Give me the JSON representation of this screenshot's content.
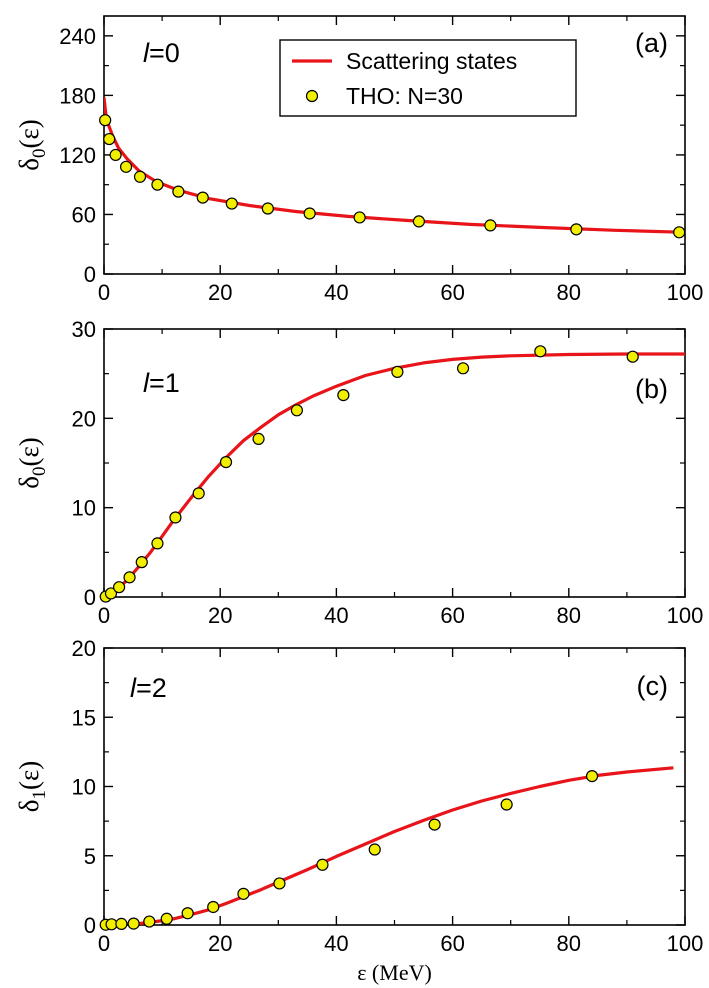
{
  "chart_data": [
    {
      "type": "scatter",
      "panel": "(a)",
      "l_label": {
        "symbol": "l",
        "text": "=0"
      },
      "ylabel": {
        "main": "δ",
        "sub": "0",
        "tail": "(ε)"
      },
      "xlim": [
        0,
        100
      ],
      "ylim": [
        0,
        260
      ],
      "xticks": [
        0,
        20,
        40,
        60,
        80,
        100
      ],
      "yticks": [
        0,
        60,
        120,
        180,
        240
      ],
      "legend": {
        "line": "Scattering states",
        "points": "THO: N=30",
        "placement": "top-center"
      },
      "series": [
        {
          "name": "Scattering states",
          "kind": "line",
          "color": "#e8141a",
          "x": [
            0,
            0.3,
            0.8,
            1.5,
            2.5,
            4,
            6,
            9,
            13,
            18,
            25,
            33,
            42,
            52,
            63,
            75,
            88,
            100
          ],
          "y": [
            178,
            162,
            150,
            139,
            127,
            116,
            104,
            93,
            84,
            76,
            69,
            63,
            58,
            54,
            50,
            47,
            44,
            42
          ]
        },
        {
          "name": "THO: N=30",
          "kind": "points",
          "color": "#f2ee00",
          "x": [
            0.2,
            0.9,
            2.0,
            3.8,
            6.2,
            9.2,
            12.8,
            17.0,
            22.0,
            28.2,
            35.4,
            44.0,
            54.2,
            66.5,
            81.3,
            99.0
          ],
          "y": [
            155,
            136,
            120,
            108,
            98,
            90,
            83,
            77,
            71,
            66,
            61,
            57,
            53,
            49,
            45,
            42
          ]
        }
      ]
    },
    {
      "type": "scatter",
      "panel": "(b)",
      "l_label": {
        "symbol": "l",
        "text": "=1"
      },
      "ylabel": {
        "main": "δ",
        "sub": "0",
        "tail": "(ε)"
      },
      "xlim": [
        0,
        100
      ],
      "ylim": [
        0,
        30
      ],
      "xticks": [
        0,
        20,
        40,
        60,
        80,
        100
      ],
      "yticks": [
        0,
        10,
        20,
        30
      ],
      "series": [
        {
          "name": "Scattering states",
          "kind": "line",
          "color": "#e8141a",
          "x": [
            0,
            1,
            2,
            4,
            6,
            8,
            10,
            12,
            15,
            18,
            21,
            24,
            27,
            30,
            33,
            36,
            40,
            45,
            50,
            55,
            60,
            65,
            70,
            80,
            90,
            100
          ],
          "y": [
            0,
            0.3,
            0.7,
            1.9,
            3.4,
            5.0,
            6.8,
            8.6,
            11.1,
            13.5,
            15.6,
            17.5,
            19.0,
            20.4,
            21.5,
            22.5,
            23.6,
            24.8,
            25.6,
            26.2,
            26.6,
            26.85,
            27.0,
            27.15,
            27.2,
            27.2
          ]
        },
        {
          "name": "THO: N=30",
          "kind": "points",
          "color": "#f2ee00",
          "x": [
            0.3,
            1.2,
            2.6,
            4.4,
            6.5,
            9.2,
            12.3,
            16.3,
            21.0,
            26.6,
            33.2,
            41.2,
            50.5,
            61.8,
            75.1,
            91.0
          ],
          "y": [
            0.05,
            0.4,
            1.1,
            2.2,
            3.9,
            6.0,
            8.9,
            11.6,
            15.1,
            17.7,
            20.9,
            22.6,
            25.2,
            25.6,
            27.5,
            26.9
          ]
        }
      ]
    },
    {
      "type": "scatter",
      "panel": "(c)",
      "l_label": {
        "symbol": "l",
        "text": "=2"
      },
      "ylabel": {
        "main": "δ",
        "sub": "1",
        "tail": "(ε)"
      },
      "xlabel": "ε (MeV)",
      "xlim": [
        0,
        100
      ],
      "ylim": [
        0,
        20
      ],
      "xticks": [
        0,
        20,
        40,
        60,
        80,
        100
      ],
      "yticks": [
        0,
        5,
        10,
        15,
        20
      ],
      "series": [
        {
          "name": "Scattering states",
          "kind": "line",
          "color": "#e8141a",
          "x": [
            0,
            3,
            6,
            9,
            12,
            15,
            18,
            21,
            24,
            27,
            30,
            35,
            40,
            45,
            50,
            55,
            60,
            65,
            70,
            75,
            80,
            85,
            90,
            98
          ],
          "y": [
            0,
            0.02,
            0.1,
            0.25,
            0.45,
            0.75,
            1.1,
            1.55,
            2.05,
            2.55,
            3.1,
            4.0,
            4.95,
            5.85,
            6.75,
            7.55,
            8.3,
            8.95,
            9.5,
            10.0,
            10.45,
            10.8,
            11.05,
            11.35
          ]
        },
        {
          "name": "THO: N=30",
          "kind": "points",
          "color": "#f2ee00",
          "x": [
            0.3,
            1.3,
            3.0,
            5.1,
            7.8,
            10.8,
            14.4,
            18.8,
            24.0,
            30.2,
            37.6,
            46.6,
            56.9,
            69.3,
            84.0
          ],
          "y": [
            0.02,
            0.05,
            0.08,
            0.1,
            0.25,
            0.45,
            0.85,
            1.3,
            2.25,
            3.0,
            4.35,
            5.45,
            7.25,
            8.7,
            10.75
          ]
        }
      ]
    }
  ]
}
